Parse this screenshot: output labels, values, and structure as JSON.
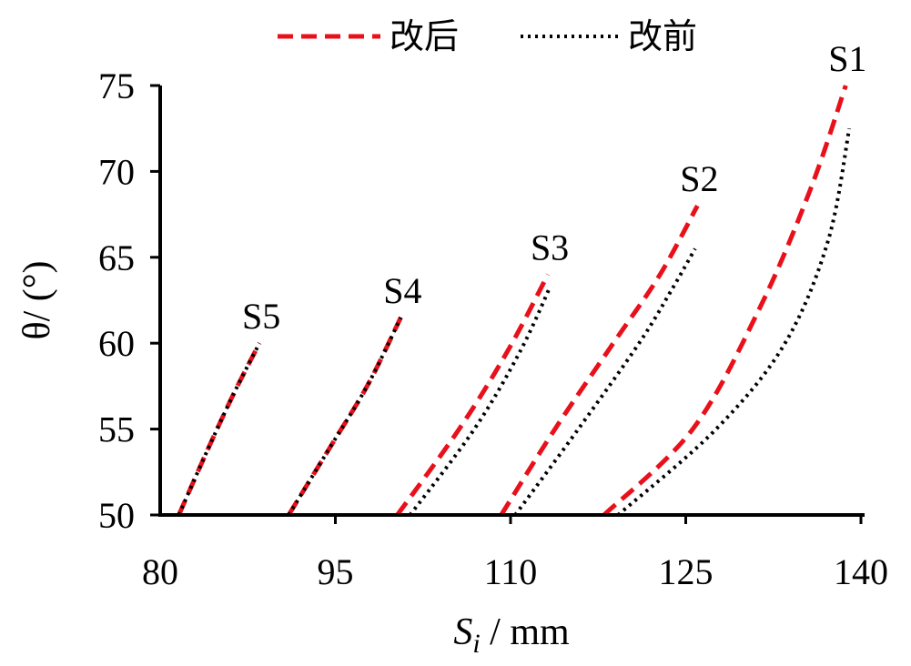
{
  "chart_data": {
    "type": "line",
    "xlabel": {
      "symbol": "S",
      "subscript": "i",
      "unit": " / mm"
    },
    "ylabel": "θ/ (°)",
    "xlim": [
      80,
      140
    ],
    "ylim": [
      50,
      75
    ],
    "xticks": [
      80,
      95,
      110,
      125,
      140
    ],
    "yticks": [
      50,
      55,
      60,
      65,
      70,
      75
    ],
    "legend": {
      "position": "top",
      "entries": [
        {
          "label": "改后",
          "style": "dashed",
          "color": "#e8101a"
        },
        {
          "label": "改前",
          "style": "dotted",
          "color": "#000000"
        }
      ]
    },
    "groups": [
      {
        "label": "S1",
        "after": {
          "x": [
            118.0,
            125.6,
            131.3,
            135.7,
            138.7
          ],
          "y": [
            50,
            55,
            62,
            69,
            75
          ]
        },
        "before": {
          "x": [
            119.2,
            127.6,
            133.5,
            137.2,
            139.0
          ],
          "y": [
            50,
            55,
            60,
            66,
            72.5
          ]
        }
      },
      {
        "label": "S2",
        "after": {
          "x": [
            109.2,
            113.8,
            118.8,
            122.8,
            126.0
          ],
          "y": [
            50,
            55,
            60,
            64,
            68
          ]
        },
        "before": {
          "x": [
            110.4,
            115.8,
            121.0,
            123.7,
            125.8
          ],
          "y": [
            50,
            55,
            60,
            63,
            65.5
          ]
        }
      },
      {
        "label": "S3",
        "after": {
          "x": [
            100.3,
            105.6,
            109.8,
            113.2
          ],
          "y": [
            50,
            55,
            59.6,
            64
          ]
        },
        "before": {
          "x": [
            101.4,
            106.9,
            110.8,
            113.4
          ],
          "y": [
            50,
            55,
            59.5,
            63.3
          ]
        }
      },
      {
        "label": "S4",
        "after": {
          "x": [
            91.0,
            94.6,
            97.8,
            100.6
          ],
          "y": [
            50,
            54.0,
            57.6,
            61.5
          ]
        },
        "before": {
          "x": [
            91.0,
            94.6,
            97.8,
            100.6
          ],
          "y": [
            50,
            54.0,
            57.6,
            61.5
          ]
        }
      },
      {
        "label": "S5",
        "after": {
          "x": [
            81.6,
            84.2,
            86.4,
            88.5
          ],
          "y": [
            50,
            54.0,
            57.2,
            60.0
          ]
        },
        "before": {
          "x": [
            81.6,
            84.2,
            86.4,
            88.5
          ],
          "y": [
            50,
            54.0,
            57.2,
            60.0
          ]
        }
      }
    ]
  }
}
